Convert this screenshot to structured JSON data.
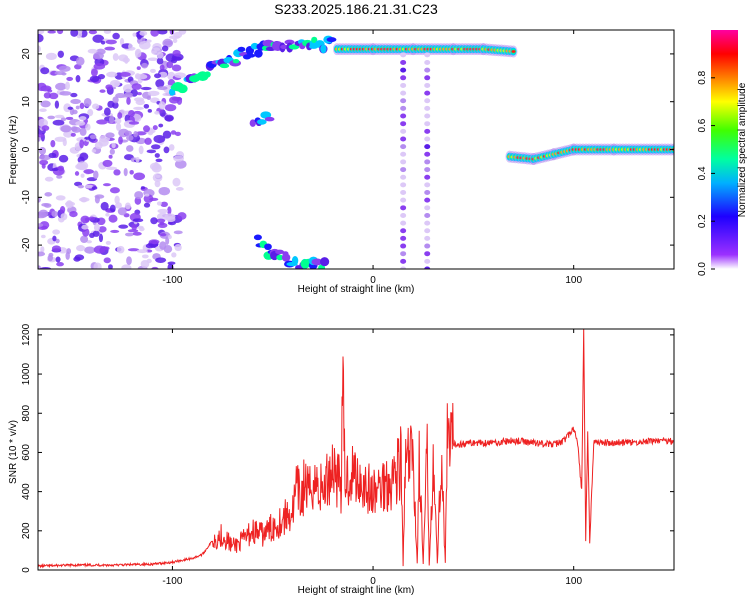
{
  "title": "S233.2025.186.21.31.C23",
  "chart_data": [
    {
      "type": "heatmap",
      "title": "S233.2025.186.21.31.C23",
      "xlabel": "Height of straight line (km)",
      "ylabel": "Frequency (Hz)",
      "xlim": [
        -167,
        150
      ],
      "ylim": [
        -25,
        25
      ],
      "x_ticks": [
        -100,
        0,
        100
      ],
      "y_ticks": [
        -20,
        -10,
        0,
        10,
        20
      ],
      "x_tick_labels": [
        "-100",
        "0",
        "100"
      ],
      "y_tick_labels": [
        "-20",
        "-10",
        "0",
        "10",
        "20"
      ],
      "colorbar": {
        "label": "Normalized spectral amplitude",
        "range": [
          0,
          1
        ],
        "ticks": [
          0.0,
          0.2,
          0.4,
          0.6,
          0.8
        ],
        "tick_labels": [
          "0.0",
          "0.2",
          "0.4",
          "0.6",
          "0.8"
        ],
        "colormap": [
          "#ffffff",
          "#7000e0",
          "#0000ff",
          "#00c0ff",
          "#00ff80",
          "#80ff00",
          "#ffff00",
          "#ff8000",
          "#ff0000",
          "#ff00a0"
        ]
      },
      "features": [
        {
          "name": "diffuse-noise",
          "x_range": [
            -167,
            -95
          ],
          "y_range": [
            -25,
            25
          ],
          "amplitude": 0.2
        },
        {
          "name": "rising-track",
          "points": [
            [
              -100,
              12
            ],
            [
              -85,
              16
            ],
            [
              -65,
              20
            ],
            [
              -50,
              22
            ],
            [
              -30,
              22
            ],
            [
              -20,
              22
            ]
          ],
          "amplitude": 0.45
        },
        {
          "name": "upper-track",
          "points": [
            [
              -18,
              21
            ],
            [
              0,
              21
            ],
            [
              20,
              21
            ],
            [
              40,
              21
            ],
            [
              55,
              21
            ],
            [
              70,
              20.5
            ]
          ],
          "amplitude": 0.95
        },
        {
          "name": "lower-track",
          "points": [
            [
              68,
              -1.5
            ],
            [
              80,
              -2
            ],
            [
              90,
              -1
            ],
            [
              100,
              0
            ],
            [
              120,
              0
            ],
            [
              150,
              0
            ]
          ],
          "amplitude": 0.95
        },
        {
          "name": "mirror-track",
          "points": [
            [
              -58,
              -19
            ],
            [
              -50,
              -22
            ],
            [
              -35,
              -24
            ],
            [
              -25,
              -24.5
            ]
          ],
          "amplitude": 0.45
        },
        {
          "name": "short-streak",
          "points": [
            [
              -60,
              5
            ],
            [
              -52,
              6.5
            ]
          ],
          "amplitude": 0.3
        },
        {
          "name": "vertical-streaks",
          "x": [
            15,
            27
          ],
          "y_range": [
            -25,
            20
          ],
          "amplitude": 0.3
        }
      ]
    },
    {
      "type": "line",
      "xlabel": "Height of straight line (km)",
      "ylabel": "SNR (10 * v/v)",
      "xlim": [
        -167,
        150
      ],
      "ylim": [
        0,
        1230
      ],
      "x_ticks": [
        -100,
        0,
        100
      ],
      "y_ticks": [
        0,
        200,
        400,
        600,
        800,
        1000,
        1200
      ],
      "x_tick_labels": [
        "-100",
        "0",
        "100"
      ],
      "y_tick_labels": [
        "0",
        "200",
        "400",
        "600",
        "800",
        "1000",
        "1200"
      ],
      "color": "#ee2222",
      "series": [
        {
          "x": [
            -167,
            -150,
            -130,
            -110,
            -100,
            -90,
            -85,
            -80,
            -75,
            -70,
            -65,
            -60,
            -55,
            -50,
            -45,
            -40,
            -38,
            -36,
            -34,
            -32,
            -30,
            -25,
            -20,
            -16,
            -15,
            -14,
            -10,
            -5,
            0,
            5,
            10,
            14,
            15,
            16,
            18,
            20,
            22,
            23,
            25,
            27,
            28,
            30,
            32,
            34,
            36,
            37,
            38,
            40,
            50,
            60,
            70,
            80,
            90,
            95,
            100,
            102,
            104,
            105,
            106,
            107,
            108,
            110,
            120,
            130,
            140,
            150
          ],
          "y": [
            20,
            25,
            25,
            30,
            40,
            60,
            80,
            150,
            180,
            120,
            150,
            200,
            180,
            220,
            260,
            300,
            420,
            350,
            450,
            380,
            460,
            400,
            540,
            440,
            880,
            460,
            500,
            450,
            380,
            440,
            470,
            560,
            20,
            520,
            560,
            580,
            30,
            560,
            30,
            610,
            30,
            600,
            30,
            610,
            30,
            640,
            620,
            640,
            650,
            650,
            660,
            650,
            640,
            660,
            720,
            640,
            400,
            1230,
            150,
            700,
            140,
            650,
            650,
            650,
            660,
            660
          ]
        }
      ]
    }
  ]
}
